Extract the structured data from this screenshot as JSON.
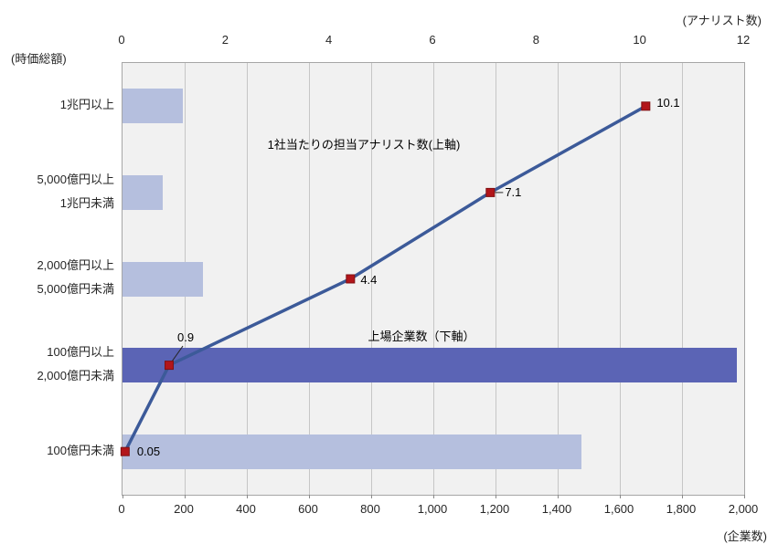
{
  "chart_data": {
    "type": "bar",
    "subtype": "horizontal bars (bottom axis) combined with line+markers (top axis)",
    "title": "",
    "categories": [
      [
        "1兆円以上"
      ],
      [
        "5,000億円以上",
        "1兆円未満"
      ],
      [
        "2,000億円以上",
        "5,000億円未満"
      ],
      [
        "100億円以上",
        "2,000億円未満"
      ],
      [
        "100億円未満"
      ]
    ],
    "series": [
      {
        "name": "上場企業数（下軸）",
        "type": "bar",
        "axis": "bottom",
        "values": [
          195,
          130,
          260,
          1975,
          1475
        ],
        "bar_colors": [
          "#B5BFDE",
          "#B5BFDE",
          "#B5BFDE",
          "#5B64B5",
          "#B5BFDE"
        ]
      },
      {
        "name": "1社当たりの担当アナリスト数(上軸)",
        "type": "line",
        "axis": "top",
        "values": [
          10.1,
          7.1,
          4.4,
          0.9,
          0.05
        ],
        "labels": [
          "10.1",
          "7.1",
          "4.4",
          "0.9",
          "0.05"
        ]
      }
    ],
    "top_axis": {
      "unit_label": "(アナリスト数)",
      "min": 0,
      "max": 12,
      "ticks": [
        "0",
        "2",
        "4",
        "6",
        "8",
        "10",
        "12"
      ]
    },
    "bottom_axis": {
      "unit_label": "(企業数)",
      "min": 0,
      "max": 2000,
      "ticks": [
        "0",
        "200",
        "400",
        "600",
        "800",
        "1,000",
        "1,200",
        "1,400",
        "1,600",
        "1,800",
        "2,000"
      ]
    },
    "left_axis": {
      "unit_label": "(時価総額)"
    },
    "annotations": [
      {
        "text": "1社当たりの担当アナリスト数(上軸)"
      },
      {
        "text": "上場企業数（下軸）"
      }
    ],
    "grid": "vertical gridlines every 200 companies (bottom axis)",
    "legend": "none (series identified by in-plot annotations)",
    "colors": {
      "bar_light": "#B5BFDE",
      "bar_dark": "#5B64B5",
      "line": "#3C5A99",
      "marker_fill": "#B2151A",
      "marker_border": "#801012",
      "plot_background": "#F1F1F1",
      "gridline": "#C6C6C6"
    }
  }
}
